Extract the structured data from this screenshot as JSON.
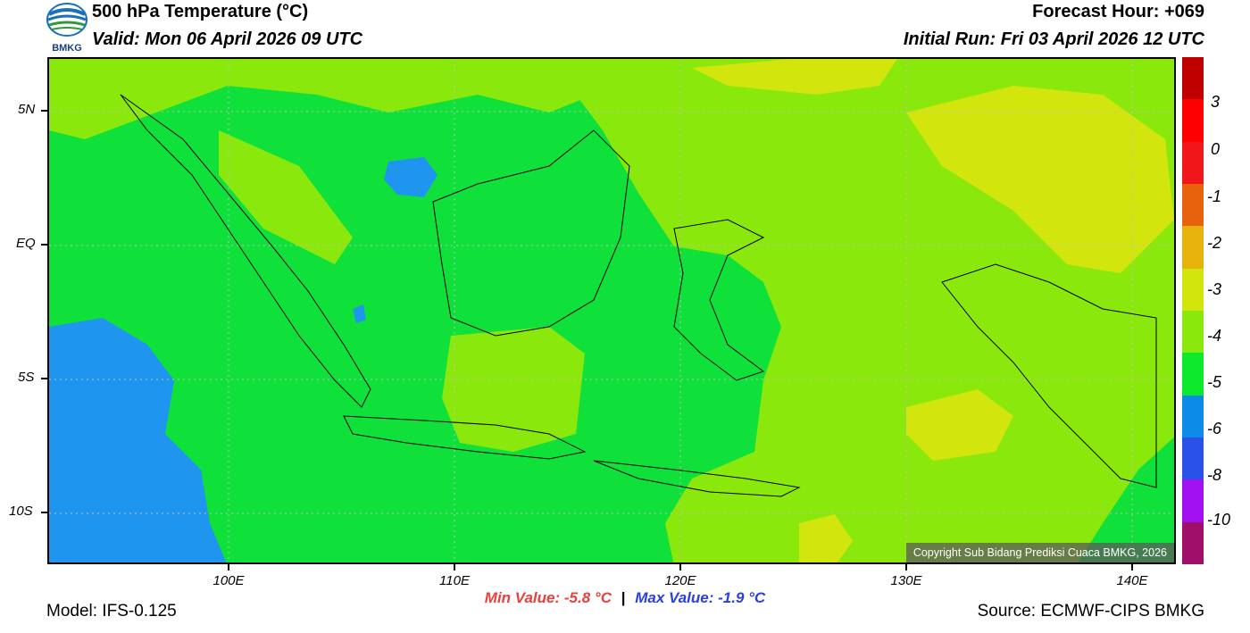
{
  "header": {
    "title": "500 hPa Temperature (°C)",
    "valid": "Valid: Mon 06 April 2026 09 UTC",
    "forecast_hour": "Forecast Hour: +069",
    "initial_run": "Initial Run: Fri 03 April 2026 12 UTC",
    "logo_text": "BMKG"
  },
  "map": {
    "lat_labels": [
      "5N",
      "EQ",
      "5S",
      "10S"
    ],
    "lon_labels": [
      "100E",
      "110E",
      "120E",
      "130E",
      "140E"
    ],
    "copyright": "Copyright Sub Bidang Prediksi Cuaca BMKG, 2026",
    "dominant_shading": "green (-4 to -5 °C)"
  },
  "colorbar": {
    "labels": [
      "3",
      "0",
      "-1",
      "-2",
      "-3",
      "-4",
      "-5",
      "-6",
      "-8",
      "-10"
    ],
    "colors": [
      "#c00000",
      "#ff0000",
      "#f0161a",
      "#e8620e",
      "#e8b20c",
      "#d2e60e",
      "#8ae80c",
      "#0ce82c",
      "#0c8ce8",
      "#2852e8",
      "#a010f0",
      "#a0106a"
    ]
  },
  "stats": {
    "min_value": "Min Value: -5.8 °C",
    "separator": "|",
    "max_value": "Max Value: -1.9 °C"
  },
  "footer": {
    "model": "Model: IFS-0.125",
    "source": "Source: ECMWF-CIPS BMKG"
  }
}
